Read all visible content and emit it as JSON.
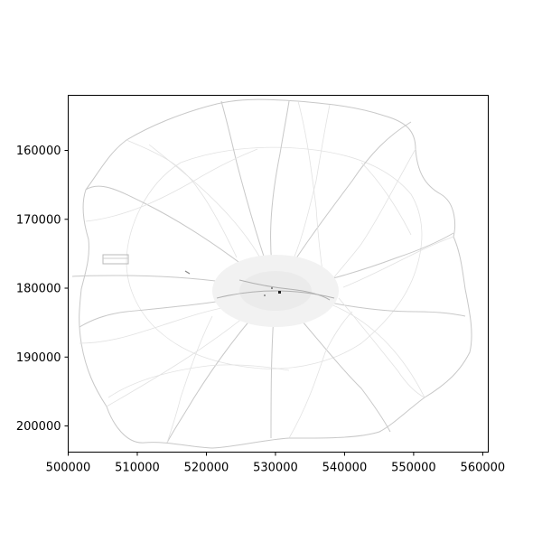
{
  "chart_data": {
    "type": "heatmap",
    "title": "",
    "xlabel": "",
    "ylabel": "",
    "x_ticks": [
      500000,
      510000,
      520000,
      530000,
      540000,
      550000,
      560000
    ],
    "x_tick_labels": [
      "500000",
      "510000",
      "520000",
      "530000",
      "540000",
      "550000",
      "560000"
    ],
    "y_ticks": [
      160000,
      170000,
      180000,
      190000,
      200000
    ],
    "y_tick_labels": [
      "160000",
      "170000",
      "180000",
      "190000",
      "200000"
    ],
    "xlim": [
      500000,
      560800
    ],
    "ylim": [
      152000,
      203800
    ],
    "y_inverted": true,
    "colormap": "greys",
    "grid": false,
    "legend": "none"
  }
}
